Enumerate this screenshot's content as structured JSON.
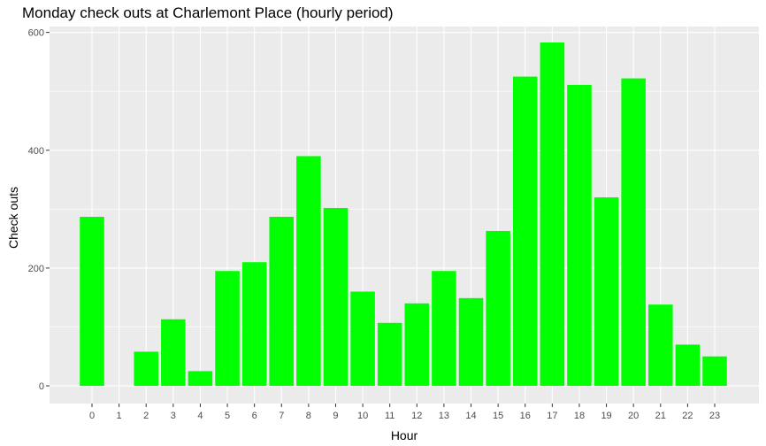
{
  "chart_data": {
    "type": "bar",
    "title": "Monday check outs at Charlemont Place (hourly period)",
    "xlabel": "Hour",
    "ylabel": "Check outs",
    "categories": [
      "0",
      "1",
      "2",
      "3",
      "4",
      "5",
      "6",
      "7",
      "8",
      "9",
      "10",
      "11",
      "12",
      "13",
      "14",
      "15",
      "16",
      "17",
      "18",
      "19",
      "20",
      "21",
      "22",
      "23"
    ],
    "values": [
      287,
      0,
      58,
      113,
      25,
      195,
      210,
      287,
      390,
      302,
      160,
      107,
      140,
      195,
      149,
      263,
      525,
      583,
      511,
      320,
      522,
      138,
      70,
      50
    ],
    "yticks": [
      0,
      200,
      400,
      600
    ],
    "ylim": [
      -30,
      610
    ],
    "bar_color": "#00ff00",
    "panel_color": "#ebebeb",
    "grid": true
  }
}
